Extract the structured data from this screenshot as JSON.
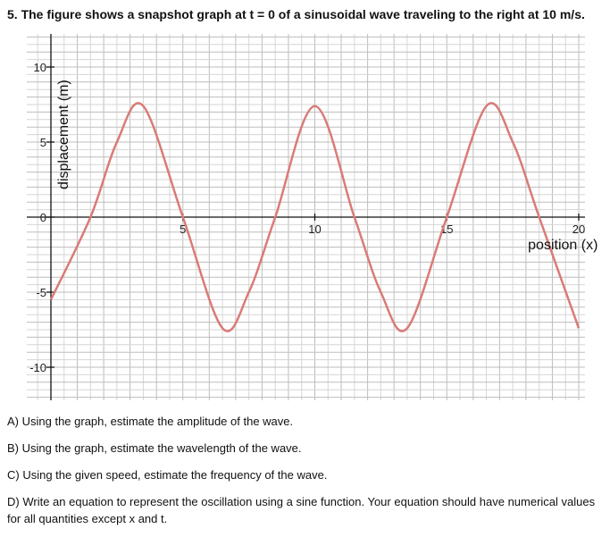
{
  "header": {
    "title": "5. The figure shows a snapshot graph at t = 0 of a sinusoidal wave traveling to the right at 10 m/s."
  },
  "questions": [
    "A) Using the graph, estimate the amplitude of the wave.",
    "B) Using the graph, estimate the wavelength of the wave.",
    "C) Using the given speed, estimate the frequency of the wave.",
    "D) Write an equation to represent the oscillation using a sine function. Your equation should have numerical values for all quantities except x and t."
  ],
  "chart_data": {
    "type": "line",
    "title": "",
    "xlabel": "position (x)",
    "ylabel": "displacement (m)",
    "xlim": [
      -0.2,
      21
    ],
    "ylim": [
      -11.5,
      11.5
    ],
    "x_ticks": [
      5,
      10,
      15,
      20
    ],
    "x_tick_labels": [
      "5",
      "10",
      "15",
      "20"
    ],
    "y_ticks": [
      10,
      5,
      0,
      -5,
      -10
    ],
    "y_tick_labels": [
      "10",
      "5",
      "0",
      "-5",
      "-10"
    ],
    "grid": true,
    "series": [
      {
        "name": "",
        "color": "#d97b78",
        "x": [
          -1,
          0,
          1.5,
          2.5,
          3.5,
          5,
          6.5,
          7.5,
          8.5,
          10,
          11.5,
          12.5,
          13.5,
          15,
          16.5,
          17.5,
          18.5,
          20,
          21
        ],
        "y": [
          -7,
          -5.5,
          0,
          5,
          7.4,
          0,
          -7.4,
          -5,
          0,
          7.4,
          0,
          -5,
          -7.4,
          0,
          7.4,
          5,
          0,
          -7.4,
          -5
        ]
      }
    ]
  }
}
